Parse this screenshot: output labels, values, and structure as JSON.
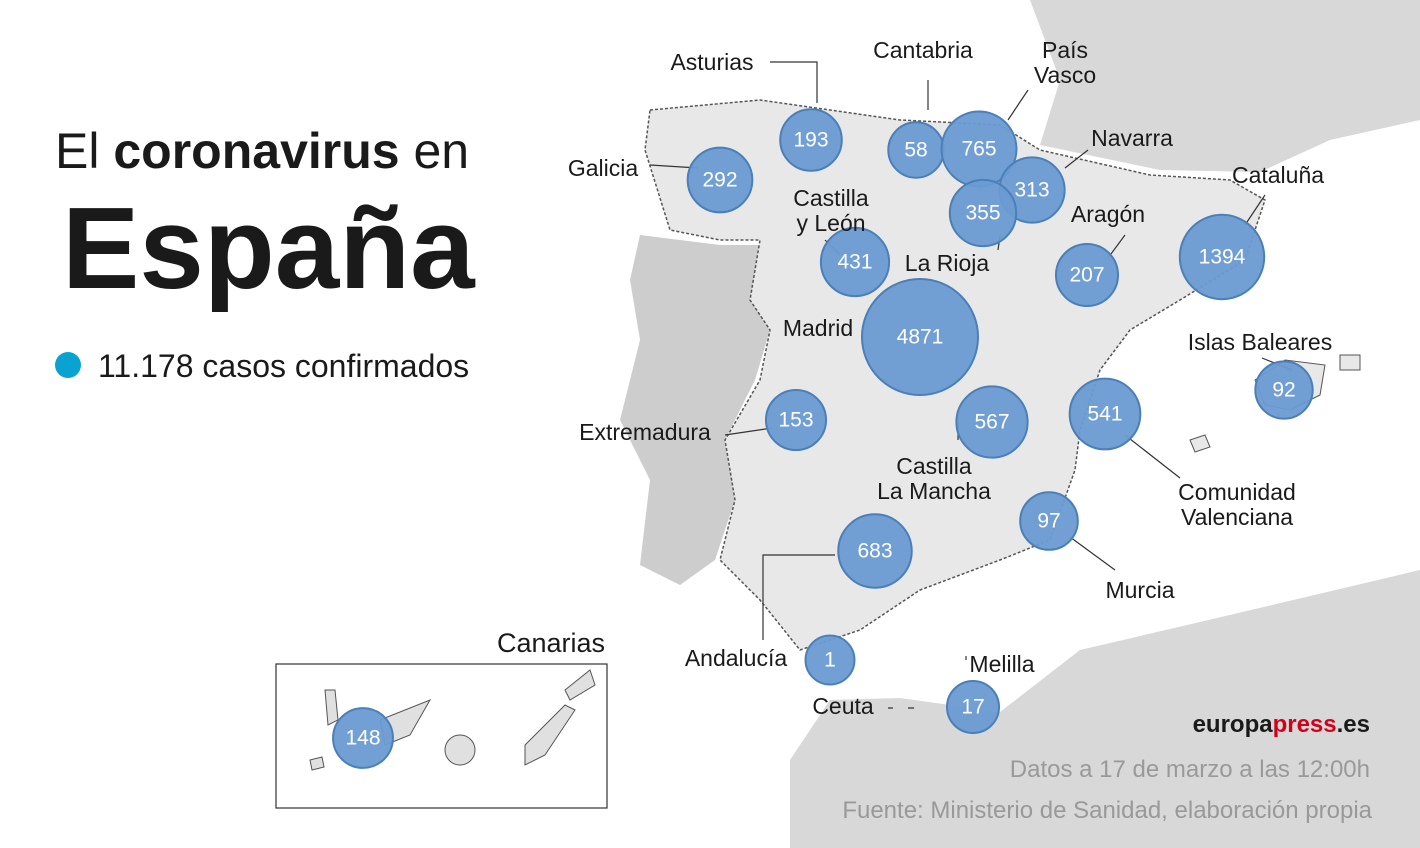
{
  "title": {
    "prefix": "El",
    "bold": "coronavirus",
    "suffix": "en",
    "main": "España"
  },
  "legend": "11.178 casos confirmados",
  "inset_label": "Canarias",
  "regions": [
    {
      "label": [
        "Asturias"
      ],
      "value": 193
    },
    {
      "label": [
        "Cantabria"
      ],
      "value": 58
    },
    {
      "label": [
        "País",
        "Vasco"
      ],
      "value": 765
    },
    {
      "label": [
        "Navarra"
      ],
      "value": 313
    },
    {
      "label": [
        "Galicia"
      ],
      "value": 292
    },
    {
      "label": [
        "Castilla",
        "y León"
      ],
      "value": 431
    },
    {
      "label": [
        "La Rioja"
      ],
      "value": 355
    },
    {
      "label": [
        "Aragón"
      ],
      "value": 207
    },
    {
      "label": [
        "Cataluña"
      ],
      "value": 1394
    },
    {
      "label": [
        "Madrid"
      ],
      "value": 4871
    },
    {
      "label": [
        "Islas Baleares"
      ],
      "value": 92
    },
    {
      "label": [
        "Extremadura"
      ],
      "value": 153
    },
    {
      "label": [
        "Castilla",
        "La Mancha"
      ],
      "value": 567
    },
    {
      "label": [
        "Comunidad",
        "Valenciana"
      ],
      "value": 541
    },
    {
      "label": [
        "Murcia"
      ],
      "value": 97
    },
    {
      "label": [
        "Andalucía"
      ],
      "value": 683
    },
    {
      "label": [
        "Ceuta"
      ],
      "value": 1
    },
    {
      "label": [
        "Melilla"
      ],
      "value": 17
    },
    {
      "label": [],
      "value": 148
    }
  ],
  "footer": {
    "brand_a": "europa",
    "brand_b": "press",
    "brand_c": ".es",
    "date": "Datos a 17 de marzo a las 12:00h",
    "source": "Fuente: Ministerio de Sanidad, elaboración propia"
  }
}
